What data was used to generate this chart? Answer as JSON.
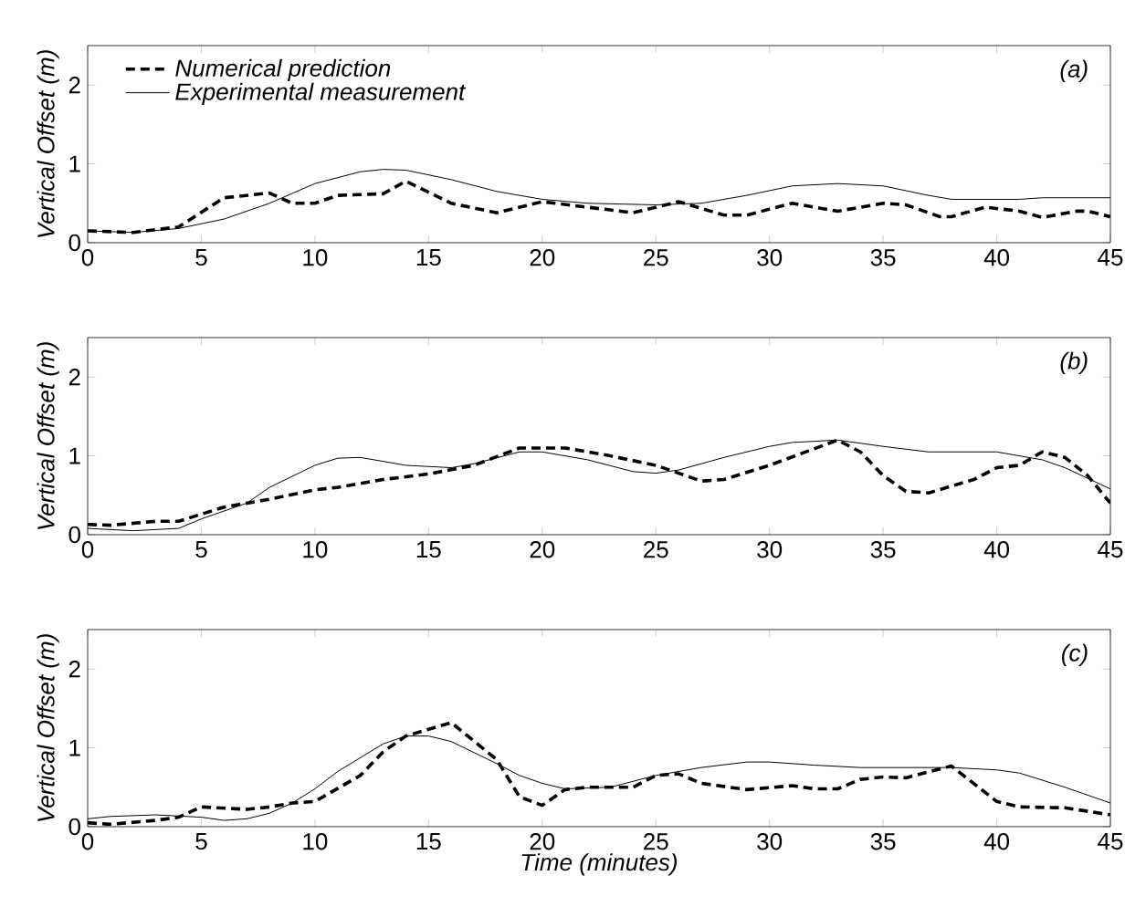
{
  "chart_data": [
    {
      "type": "line",
      "ylabel": "Vertical Offset (m)",
      "annotations": [
        "(a)"
      ],
      "xlim": [
        0,
        45
      ],
      "ylim": [
        0,
        2.5
      ],
      "xticks": [
        0,
        5,
        10,
        15,
        20,
        25,
        30,
        35,
        40,
        45
      ],
      "yticks": [
        0,
        1,
        2
      ],
      "legend": "top left",
      "grid": false,
      "series": [
        {
          "name": "Numerical prediction",
          "color": "#000000",
          "line_style": "dashed",
          "x": [
            0,
            2,
            4,
            6,
            8,
            9,
            10,
            11,
            13,
            14,
            16,
            18,
            20,
            22,
            24,
            26,
            28,
            29,
            31,
            33,
            35,
            36,
            37.5,
            38,
            39.5,
            41,
            42,
            43.5,
            44,
            45
          ],
          "values": [
            0.15,
            0.13,
            0.2,
            0.57,
            0.63,
            0.5,
            0.5,
            0.6,
            0.62,
            0.78,
            0.5,
            0.38,
            0.52,
            0.45,
            0.38,
            0.52,
            0.35,
            0.35,
            0.5,
            0.4,
            0.5,
            0.48,
            0.33,
            0.33,
            0.45,
            0.4,
            0.32,
            0.4,
            0.4,
            0.33
          ]
        },
        {
          "name": "Experimental measurement",
          "color": "#000000",
          "line_style": "solid",
          "x": [
            0,
            2,
            4,
            6,
            8,
            10,
            12,
            13,
            14,
            16,
            18,
            20,
            22,
            25,
            27,
            29,
            31,
            33,
            35,
            37,
            38,
            41,
            42,
            45
          ],
          "values": [
            0.15,
            0.13,
            0.18,
            0.3,
            0.5,
            0.75,
            0.9,
            0.93,
            0.92,
            0.8,
            0.65,
            0.55,
            0.5,
            0.48,
            0.5,
            0.6,
            0.72,
            0.75,
            0.72,
            0.6,
            0.55,
            0.55,
            0.57,
            0.57
          ]
        }
      ]
    },
    {
      "type": "line",
      "ylabel": "Vertical Offset (m)",
      "annotations": [
        "(b)"
      ],
      "xlim": [
        0,
        45
      ],
      "ylim": [
        0,
        2.5
      ],
      "xticks": [
        0,
        5,
        10,
        15,
        20,
        25,
        30,
        35,
        40,
        45
      ],
      "yticks": [
        0,
        1,
        2
      ],
      "grid": false,
      "series": [
        {
          "color": "#000000",
          "line_style": "dashed",
          "x": [
            0,
            1,
            3,
            4,
            6,
            8,
            10,
            11,
            13,
            15,
            17,
            19,
            21,
            23,
            25,
            27,
            28,
            30,
            33,
            34,
            35,
            36,
            37,
            39,
            40,
            41,
            42,
            43,
            44,
            45
          ],
          "values": [
            0.13,
            0.12,
            0.17,
            0.17,
            0.35,
            0.45,
            0.57,
            0.6,
            0.7,
            0.77,
            0.88,
            1.1,
            1.1,
            1.0,
            0.88,
            0.68,
            0.7,
            0.88,
            1.2,
            1.05,
            0.75,
            0.55,
            0.53,
            0.7,
            0.85,
            0.88,
            1.05,
            0.98,
            0.75,
            0.4
          ]
        },
        {
          "color": "#000000",
          "line_style": "solid",
          "x": [
            0,
            2,
            4,
            5,
            7,
            8,
            10,
            11,
            12,
            14,
            16,
            17,
            19,
            20,
            22,
            24,
            25,
            26,
            28,
            30,
            31,
            33,
            35,
            37,
            40,
            42,
            43,
            45
          ],
          "values": [
            0.08,
            0.05,
            0.08,
            0.2,
            0.4,
            0.6,
            0.88,
            0.97,
            0.98,
            0.88,
            0.85,
            0.9,
            1.05,
            1.05,
            0.95,
            0.8,
            0.78,
            0.82,
            0.98,
            1.12,
            1.17,
            1.2,
            1.12,
            1.05,
            1.05,
            0.95,
            0.85,
            0.58
          ]
        }
      ]
    },
    {
      "type": "line",
      "xlabel": "Time (minutes)",
      "ylabel": "Vertical Offset (m)",
      "annotations": [
        "(c)"
      ],
      "xlim": [
        0,
        45
      ],
      "ylim": [
        0,
        2.5
      ],
      "xticks": [
        0,
        5,
        10,
        15,
        20,
        25,
        30,
        35,
        40,
        45
      ],
      "yticks": [
        0,
        1,
        2
      ],
      "grid": false,
      "series": [
        {
          "color": "#000000",
          "line_style": "dashed",
          "x": [
            0,
            1,
            3,
            4,
            5,
            7,
            8,
            9,
            10,
            12,
            13,
            14,
            16,
            18,
            19,
            20,
            21,
            22,
            24,
            25,
            26,
            27,
            29,
            31,
            32,
            33,
            34,
            35,
            36,
            38,
            40,
            41,
            43,
            45
          ],
          "values": [
            0.05,
            0.03,
            0.08,
            0.12,
            0.25,
            0.22,
            0.25,
            0.3,
            0.32,
            0.65,
            0.95,
            1.15,
            1.32,
            0.85,
            0.38,
            0.27,
            0.47,
            0.5,
            0.5,
            0.65,
            0.67,
            0.55,
            0.47,
            0.52,
            0.48,
            0.48,
            0.6,
            0.63,
            0.62,
            0.77,
            0.32,
            0.25,
            0.24,
            0.15
          ]
        },
        {
          "color": "#000000",
          "line_style": "solid",
          "x": [
            0,
            1,
            3,
            5,
            6,
            7,
            8,
            9,
            10,
            11,
            13,
            14,
            15,
            16,
            18,
            19,
            20,
            21,
            23,
            25,
            27,
            29,
            30,
            32,
            34,
            38,
            40,
            41,
            43,
            45
          ],
          "values": [
            0.1,
            0.13,
            0.15,
            0.12,
            0.08,
            0.1,
            0.17,
            0.3,
            0.48,
            0.7,
            1.05,
            1.15,
            1.15,
            1.08,
            0.8,
            0.65,
            0.55,
            0.48,
            0.5,
            0.65,
            0.75,
            0.82,
            0.82,
            0.78,
            0.75,
            0.75,
            0.72,
            0.68,
            0.5,
            0.3
          ]
        }
      ]
    }
  ]
}
